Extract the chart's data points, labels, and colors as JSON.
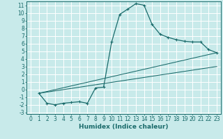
{
  "title": "",
  "xlabel": "Humidex (Indice chaleur)",
  "bg_color": "#c8eaea",
  "grid_color": "#ffffff",
  "line_color": "#1a6b6b",
  "xlim": [
    -0.5,
    23.5
  ],
  "ylim": [
    -3.2,
    11.5
  ],
  "xticks": [
    0,
    1,
    2,
    3,
    4,
    5,
    6,
    7,
    8,
    9,
    10,
    11,
    12,
    13,
    14,
    15,
    16,
    17,
    18,
    19,
    20,
    21,
    22,
    23
  ],
  "yticks": [
    -3,
    -2,
    -1,
    0,
    1,
    2,
    3,
    4,
    5,
    6,
    7,
    8,
    9,
    10,
    11
  ],
  "series_main": {
    "x": [
      1,
      2,
      3,
      4,
      5,
      6,
      7,
      8,
      9,
      10,
      11,
      12,
      13,
      14,
      15,
      16,
      17,
      18,
      19,
      20,
      21,
      22,
      23
    ],
    "y": [
      -0.5,
      -1.8,
      -2.0,
      -1.8,
      -1.7,
      -1.6,
      -1.8,
      0.2,
      0.3,
      6.2,
      9.8,
      10.5,
      11.2,
      11.0,
      8.5,
      7.2,
      6.8,
      6.5,
      6.3,
      6.2,
      6.2,
      5.2,
      4.8
    ]
  },
  "series_line1": {
    "x": [
      1,
      23
    ],
    "y": [
      -0.5,
      3.0
    ]
  },
  "series_line2": {
    "x": [
      1,
      23
    ],
    "y": [
      -0.5,
      4.8
    ]
  },
  "xlabel_fontsize": 6.5,
  "tick_fontsize": 5.5,
  "line_width": 0.9,
  "marker_size": 3.5
}
